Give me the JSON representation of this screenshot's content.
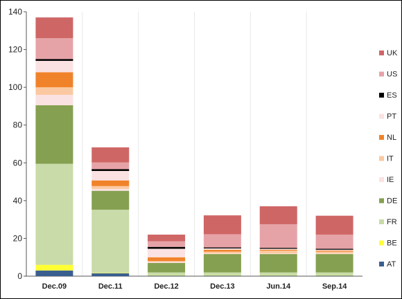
{
  "chart_data": {
    "type": "bar",
    "stacked": true,
    "title": "",
    "xlabel": "",
    "ylabel": "",
    "ylim": [
      0,
      140
    ],
    "yticks": [
      0,
      20,
      40,
      60,
      80,
      100,
      120,
      140
    ],
    "grid": "vertical",
    "legend_position": "right",
    "categories": [
      "Dec.09",
      "Dec.11",
      "Dec.12",
      "Dec.13",
      "Jun.14",
      "Sep.14"
    ],
    "series": [
      {
        "name": "AT",
        "color": "#3a5f8f",
        "values": [
          3,
          1.5,
          0.3,
          0.3,
          0.3,
          0.3
        ]
      },
      {
        "name": "BE",
        "color": "#ffff33",
        "values": [
          3,
          0.2,
          0.2,
          0.2,
          0.2,
          0.2
        ]
      },
      {
        "name": "FR",
        "color": "#c8dba8",
        "values": [
          53.5,
          33.5,
          1.5,
          1.5,
          1.5,
          1.5
        ]
      },
      {
        "name": "DE",
        "color": "#85a050",
        "values": [
          31,
          10,
          5,
          9.7,
          9.7,
          9.7
        ]
      },
      {
        "name": "IE",
        "color": "#fbe2e2",
        "values": [
          5.5,
          1,
          0.5,
          0.3,
          0.3,
          0.3
        ]
      },
      {
        "name": "IT",
        "color": "#fbc9a1",
        "values": [
          4,
          1.5,
          0.5,
          1,
          1.5,
          1
        ]
      },
      {
        "name": "NL",
        "color": "#f0832a",
        "values": [
          8,
          3,
          2,
          1,
          0.5,
          0.5
        ]
      },
      {
        "name": "PT",
        "color": "#fbe2e2",
        "values": [
          6,
          5,
          4.5,
          0.7,
          0.5,
          0.5
        ]
      },
      {
        "name": "ES",
        "color": "#000000",
        "values": [
          1,
          1,
          1,
          0.5,
          0.5,
          0.5
        ]
      },
      {
        "name": "US",
        "color": "#e6a3a7",
        "values": [
          11,
          3.5,
          3,
          7,
          12.5,
          7.5
        ]
      },
      {
        "name": "UK",
        "color": "#cf6666",
        "values": [
          11,
          8,
          3.5,
          10,
          9.5,
          10
        ]
      }
    ]
  }
}
